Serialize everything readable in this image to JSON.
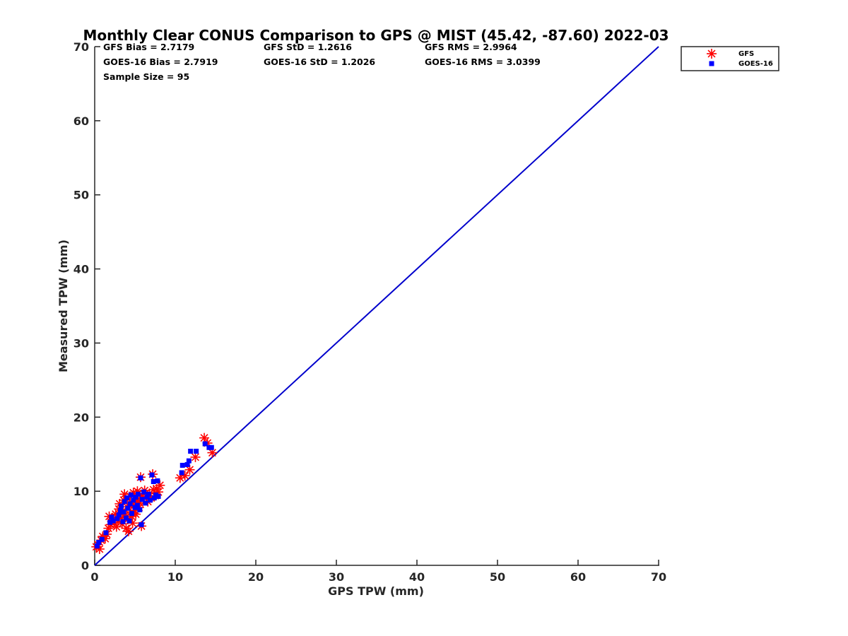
{
  "chart_data": {
    "type": "scatter",
    "title": "Monthly Clear CONUS Comparison to GPS @ MIST (45.42, -87.60) 2022-03",
    "xlabel": "GPS TPW (mm)",
    "ylabel": "Measured TPW (mm)",
    "xlim": [
      0,
      70
    ],
    "ylim": [
      0,
      70
    ],
    "xticks": [
      "0",
      "10",
      "20",
      "30",
      "40",
      "50",
      "60",
      "70"
    ],
    "yticks": [
      "0",
      "10",
      "20",
      "30",
      "40",
      "50",
      "60",
      "70"
    ],
    "grid": false,
    "legend_position": "outside-top-right",
    "stats": [
      [
        "GFS Bias = 2.7179",
        "GFS StD = 1.2616",
        "GFS RMS = 2.9964"
      ],
      [
        "GOES-16 Bias = 2.7919",
        "GOES-16 StD = 1.2026",
        "GOES-16 RMS = 3.0399"
      ],
      [
        "Sample Size = 95"
      ]
    ],
    "reference_line": {
      "x": [
        0,
        70
      ],
      "y": [
        0,
        70
      ],
      "color": "#0000cc"
    },
    "series": [
      {
        "name": "GFS",
        "marker": "asterisk",
        "color": "#ff0000",
        "points": [
          [
            0.2,
            2.5
          ],
          [
            0.4,
            2.8
          ],
          [
            0.6,
            2.2
          ],
          [
            0.8,
            3.4
          ],
          [
            1.0,
            3.9
          ],
          [
            1.3,
            3.6
          ],
          [
            1.5,
            4.2
          ],
          [
            1.7,
            5.0
          ],
          [
            1.8,
            6.6
          ],
          [
            2.0,
            5.5
          ],
          [
            2.2,
            6.2
          ],
          [
            2.4,
            5.8
          ],
          [
            2.6,
            6.9
          ],
          [
            2.7,
            5.2
          ],
          [
            2.9,
            6.0
          ],
          [
            3.0,
            7.6
          ],
          [
            3.1,
            8.3
          ],
          [
            3.3,
            6.4
          ],
          [
            3.4,
            5.6
          ],
          [
            3.5,
            7.0
          ],
          [
            3.6,
            8.8
          ],
          [
            3.7,
            9.6
          ],
          [
            3.8,
            6.8
          ],
          [
            3.9,
            5.0
          ],
          [
            4.0,
            7.9
          ],
          [
            4.1,
            6.2
          ],
          [
            4.2,
            4.6
          ],
          [
            4.3,
            8.4
          ],
          [
            4.4,
            9.3
          ],
          [
            4.5,
            7.2
          ],
          [
            4.6,
            6.6
          ],
          [
            4.7,
            5.7
          ],
          [
            4.8,
            9.8
          ],
          [
            4.9,
            8.1
          ],
          [
            5.0,
            7.4
          ],
          [
            5.1,
            6.9
          ],
          [
            5.2,
            8.7
          ],
          [
            5.3,
            10.0
          ],
          [
            5.4,
            9.0
          ],
          [
            5.5,
            7.8
          ],
          [
            5.6,
            8.4
          ],
          [
            5.7,
            11.9
          ],
          [
            5.8,
            5.3
          ],
          [
            5.9,
            9.5
          ],
          [
            6.0,
            8.9
          ],
          [
            6.2,
            10.1
          ],
          [
            6.4,
            9.3
          ],
          [
            6.6,
            8.6
          ],
          [
            6.8,
            9.7
          ],
          [
            7.0,
            9.1
          ],
          [
            7.2,
            12.3
          ],
          [
            7.3,
            10.2
          ],
          [
            7.5,
            9.4
          ],
          [
            7.7,
            10.3
          ],
          [
            7.9,
            9.9
          ],
          [
            8.1,
            10.8
          ],
          [
            10.6,
            11.8
          ],
          [
            11.2,
            12.1
          ],
          [
            11.8,
            12.9
          ],
          [
            12.5,
            14.6
          ],
          [
            13.6,
            17.2
          ],
          [
            14.0,
            16.5
          ],
          [
            14.6,
            15.2
          ]
        ]
      },
      {
        "name": "GOES-16",
        "marker": "square",
        "color": "#0000ff",
        "points": [
          [
            0.3,
            2.6
          ],
          [
            0.5,
            3.1
          ],
          [
            0.9,
            3.5
          ],
          [
            1.4,
            4.4
          ],
          [
            1.9,
            5.8
          ],
          [
            2.1,
            6.5
          ],
          [
            2.3,
            6.0
          ],
          [
            2.8,
            6.3
          ],
          [
            3.0,
            6.8
          ],
          [
            3.2,
            7.4
          ],
          [
            3.3,
            8.0
          ],
          [
            3.5,
            5.9
          ],
          [
            3.6,
            7.2
          ],
          [
            3.7,
            8.6
          ],
          [
            3.9,
            6.4
          ],
          [
            4.0,
            9.1
          ],
          [
            4.1,
            7.7
          ],
          [
            4.3,
            6.0
          ],
          [
            4.4,
            8.3
          ],
          [
            4.5,
            9.5
          ],
          [
            4.6,
            7.0
          ],
          [
            4.8,
            8.8
          ],
          [
            5.0,
            7.8
          ],
          [
            5.1,
            9.2
          ],
          [
            5.3,
            8.1
          ],
          [
            5.4,
            9.6
          ],
          [
            5.6,
            7.5
          ],
          [
            5.7,
            11.8
          ],
          [
            5.8,
            5.5
          ],
          [
            5.9,
            8.9
          ],
          [
            6.1,
            9.9
          ],
          [
            6.3,
            8.4
          ],
          [
            6.5,
            9.2
          ],
          [
            6.7,
            9.6
          ],
          [
            6.9,
            8.8
          ],
          [
            7.1,
            12.2
          ],
          [
            7.3,
            11.3
          ],
          [
            7.4,
            9.1
          ],
          [
            7.6,
            9.5
          ],
          [
            7.8,
            11.4
          ],
          [
            7.9,
            9.3
          ],
          [
            10.8,
            12.5
          ],
          [
            10.9,
            13.5
          ],
          [
            11.5,
            13.6
          ],
          [
            11.7,
            14.1
          ],
          [
            11.9,
            15.4
          ],
          [
            12.6,
            15.4
          ],
          [
            13.7,
            16.4
          ],
          [
            14.2,
            15.9
          ],
          [
            14.5,
            15.9
          ]
        ]
      }
    ]
  }
}
